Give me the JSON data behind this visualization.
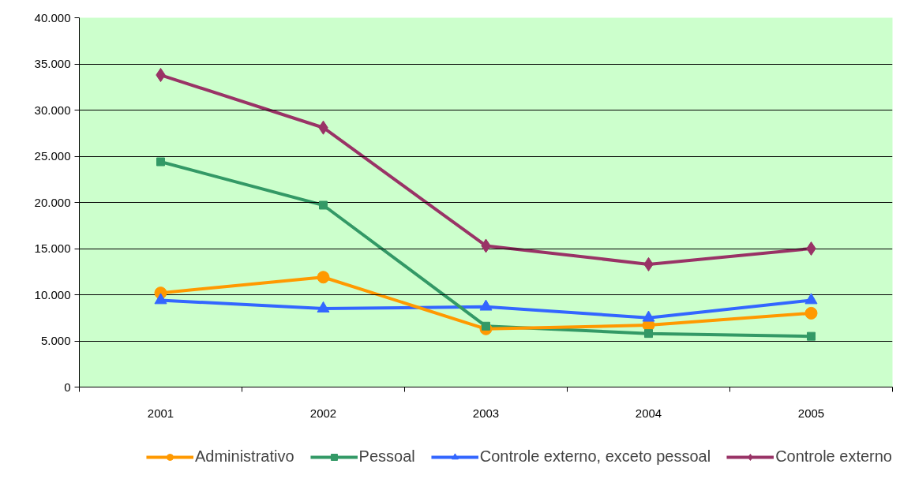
{
  "chart_data": {
    "type": "line",
    "categories": [
      "2001",
      "2002",
      "2003",
      "2004",
      "2005"
    ],
    "series": [
      {
        "name": "Administrativo",
        "color": "#ff9900",
        "marker": "circle",
        "values": [
          10200,
          11900,
          6300,
          6700,
          8000
        ]
      },
      {
        "name": "Pessoal",
        "color": "#339966",
        "marker": "square",
        "values": [
          24400,
          19700,
          6600,
          5800,
          5500
        ]
      },
      {
        "name": "Controle externo, exceto pessoal",
        "color": "#3366ff",
        "marker": "triangle",
        "values": [
          9400,
          8500,
          8700,
          7500,
          9400
        ]
      },
      {
        "name": "Controle externo",
        "color": "#993366",
        "marker": "diamond",
        "values": [
          33800,
          28100,
          15300,
          13300,
          15000
        ]
      }
    ],
    "ylim": [
      0,
      40000
    ],
    "yticks": [
      {
        "value": 0,
        "label": "0"
      },
      {
        "value": 5000,
        "label": "5.000"
      },
      {
        "value": 10000,
        "label": "10.000"
      },
      {
        "value": 15000,
        "label": "15.000"
      },
      {
        "value": 20000,
        "label": "20.000"
      },
      {
        "value": 25000,
        "label": "25.000"
      },
      {
        "value": 30000,
        "label": "30.000"
      },
      {
        "value": 35000,
        "label": "35.000"
      },
      {
        "value": 40000,
        "label": "40.000"
      }
    ],
    "grid": "y",
    "legend": "bottom"
  }
}
